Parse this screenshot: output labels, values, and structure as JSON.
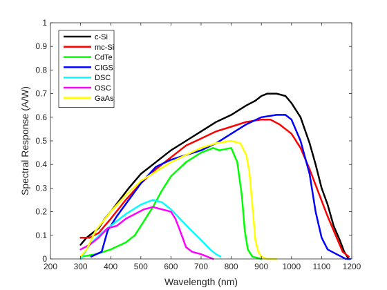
{
  "chart_data": {
    "type": "line",
    "xlabel": "Wavelength (nm)",
    "ylabel": "Spectral Response (A/W)",
    "xlim": [
      200,
      1200
    ],
    "ylim": [
      0,
      1
    ],
    "xticks": [
      200,
      300,
      400,
      500,
      600,
      700,
      800,
      900,
      1000,
      1100,
      1200
    ],
    "yticks": [
      0,
      0.1,
      0.2,
      0.3,
      0.4,
      0.5,
      0.6,
      0.7,
      0.8,
      0.9,
      1
    ],
    "xtick_labels": [
      "200",
      "300",
      "400",
      "500",
      "600",
      "700",
      "800",
      "900",
      "1000",
      "1100",
      "1200"
    ],
    "ytick_labels": [
      "0",
      "0.1",
      "0.2",
      "0.3",
      "0.4",
      "0.5",
      "0.6",
      "0.7",
      "0.8",
      "0.9",
      "1"
    ],
    "grid": false,
    "legend_position": "top-left",
    "series": [
      {
        "name": "c-Si",
        "color": "#000000",
        "points": [
          [
            300,
            0.06
          ],
          [
            320,
            0.09
          ],
          [
            340,
            0.11
          ],
          [
            360,
            0.13
          ],
          [
            380,
            0.17
          ],
          [
            400,
            0.2
          ],
          [
            430,
            0.25
          ],
          [
            460,
            0.3
          ],
          [
            500,
            0.36
          ],
          [
            550,
            0.41
          ],
          [
            600,
            0.46
          ],
          [
            650,
            0.5
          ],
          [
            700,
            0.54
          ],
          [
            750,
            0.58
          ],
          [
            800,
            0.61
          ],
          [
            850,
            0.65
          ],
          [
            880,
            0.67
          ],
          [
            900,
            0.69
          ],
          [
            920,
            0.7
          ],
          [
            950,
            0.7
          ],
          [
            980,
            0.69
          ],
          [
            1000,
            0.66
          ],
          [
            1030,
            0.6
          ],
          [
            1060,
            0.49
          ],
          [
            1080,
            0.4
          ],
          [
            1100,
            0.3
          ],
          [
            1120,
            0.23
          ],
          [
            1140,
            0.14
          ],
          [
            1160,
            0.08
          ],
          [
            1175,
            0.03
          ],
          [
            1190,
            0.0
          ]
        ]
      },
      {
        "name": "mc-Si",
        "color": "#ff0000",
        "points": [
          [
            300,
            0.09
          ],
          [
            330,
            0.09
          ],
          [
            360,
            0.11
          ],
          [
            380,
            0.14
          ],
          [
            400,
            0.17
          ],
          [
            450,
            0.25
          ],
          [
            500,
            0.32
          ],
          [
            550,
            0.38
          ],
          [
            600,
            0.43
          ],
          [
            650,
            0.48
          ],
          [
            700,
            0.51
          ],
          [
            750,
            0.54
          ],
          [
            800,
            0.56
          ],
          [
            850,
            0.58
          ],
          [
            900,
            0.59
          ],
          [
            930,
            0.59
          ],
          [
            960,
            0.57
          ],
          [
            1000,
            0.53
          ],
          [
            1030,
            0.47
          ],
          [
            1060,
            0.38
          ],
          [
            1090,
            0.28
          ],
          [
            1120,
            0.18
          ],
          [
            1150,
            0.09
          ],
          [
            1170,
            0.03
          ],
          [
            1190,
            0.01
          ]
        ]
      },
      {
        "name": "CdTe",
        "color": "#00ff00",
        "points": [
          [
            305,
            0.01
          ],
          [
            350,
            0.02
          ],
          [
            400,
            0.04
          ],
          [
            450,
            0.07
          ],
          [
            480,
            0.1
          ],
          [
            510,
            0.16
          ],
          [
            540,
            0.22
          ],
          [
            570,
            0.29
          ],
          [
            600,
            0.35
          ],
          [
            650,
            0.41
          ],
          [
            700,
            0.45
          ],
          [
            740,
            0.47
          ],
          [
            760,
            0.46
          ],
          [
            800,
            0.47
          ],
          [
            820,
            0.41
          ],
          [
            835,
            0.27
          ],
          [
            845,
            0.12
          ],
          [
            855,
            0.04
          ],
          [
            870,
            0.01
          ],
          [
            900,
            0.0
          ]
        ]
      },
      {
        "name": "CIGS",
        "color": "#0000ff",
        "points": [
          [
            335,
            0.01
          ],
          [
            370,
            0.03
          ],
          [
            390,
            0.12
          ],
          [
            420,
            0.18
          ],
          [
            460,
            0.25
          ],
          [
            500,
            0.32
          ],
          [
            550,
            0.39
          ],
          [
            600,
            0.42
          ],
          [
            650,
            0.44
          ],
          [
            700,
            0.46
          ],
          [
            750,
            0.49
          ],
          [
            800,
            0.53
          ],
          [
            850,
            0.57
          ],
          [
            900,
            0.6
          ],
          [
            950,
            0.61
          ],
          [
            980,
            0.61
          ],
          [
            1000,
            0.59
          ],
          [
            1030,
            0.5
          ],
          [
            1060,
            0.36
          ],
          [
            1080,
            0.2
          ],
          [
            1100,
            0.09
          ],
          [
            1120,
            0.04
          ],
          [
            1150,
            0.02
          ],
          [
            1180,
            0.0
          ],
          [
            1195,
            0.0
          ]
        ]
      },
      {
        "name": "DSC",
        "color": "#00ffff",
        "points": [
          [
            300,
            0.0
          ],
          [
            330,
            0.06
          ],
          [
            370,
            0.11
          ],
          [
            400,
            0.14
          ],
          [
            450,
            0.19
          ],
          [
            500,
            0.23
          ],
          [
            540,
            0.25
          ],
          [
            570,
            0.24
          ],
          [
            600,
            0.21
          ],
          [
            630,
            0.17
          ],
          [
            660,
            0.13
          ],
          [
            700,
            0.08
          ],
          [
            730,
            0.04
          ],
          [
            750,
            0.02
          ],
          [
            765,
            0.01
          ]
        ]
      },
      {
        "name": "OSC",
        "color": "#ff00ff",
        "points": [
          [
            300,
            0.04
          ],
          [
            330,
            0.06
          ],
          [
            360,
            0.09
          ],
          [
            390,
            0.13
          ],
          [
            420,
            0.14
          ],
          [
            450,
            0.17
          ],
          [
            480,
            0.19
          ],
          [
            510,
            0.21
          ],
          [
            540,
            0.22
          ],
          [
            570,
            0.21
          ],
          [
            600,
            0.2
          ],
          [
            615,
            0.17
          ],
          [
            630,
            0.12
          ],
          [
            650,
            0.05
          ],
          [
            670,
            0.03
          ],
          [
            700,
            0.02
          ],
          [
            740,
            0.0
          ]
        ]
      },
      {
        "name": "GaAs",
        "color": "#ffff00",
        "points": [
          [
            300,
            0.01
          ],
          [
            320,
            0.04
          ],
          [
            350,
            0.12
          ],
          [
            400,
            0.2
          ],
          [
            450,
            0.27
          ],
          [
            500,
            0.33
          ],
          [
            550,
            0.37
          ],
          [
            600,
            0.41
          ],
          [
            650,
            0.44
          ],
          [
            700,
            0.47
          ],
          [
            750,
            0.49
          ],
          [
            800,
            0.5
          ],
          [
            830,
            0.49
          ],
          [
            850,
            0.44
          ],
          [
            860,
            0.37
          ],
          [
            870,
            0.23
          ],
          [
            880,
            0.08
          ],
          [
            890,
            0.03
          ],
          [
            900,
            0.01
          ],
          [
            920,
            0.0
          ],
          [
            950,
            0.0
          ]
        ]
      }
    ]
  }
}
